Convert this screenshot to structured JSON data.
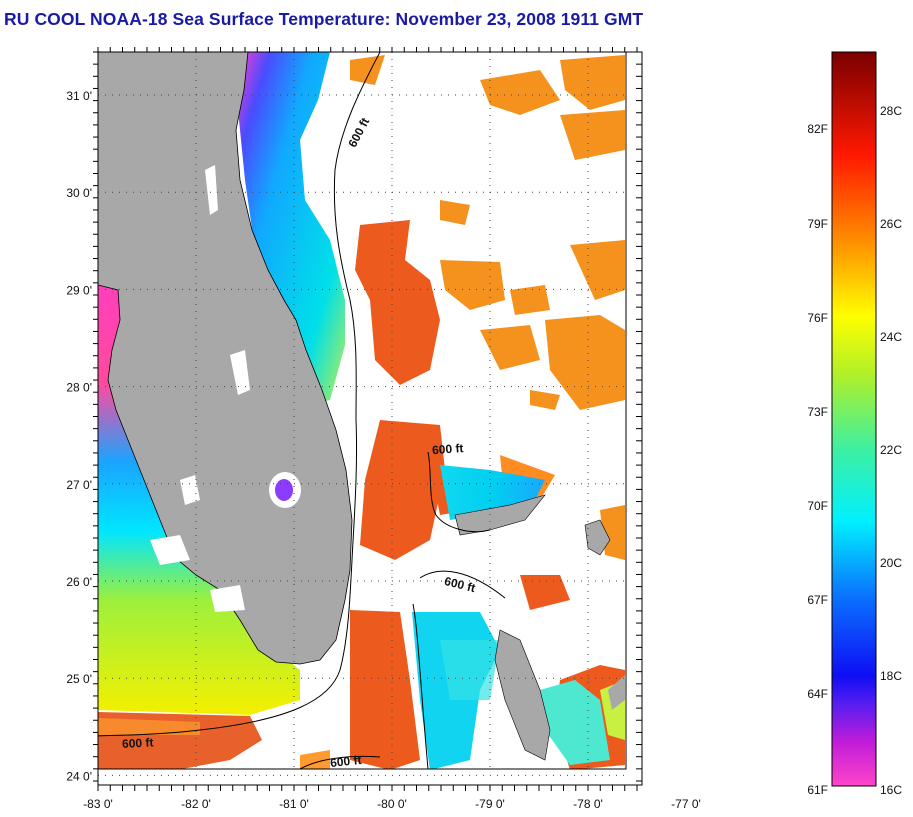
{
  "title": "RU COOL  NOAA-18  Sea Surface Temperature:  November 23, 2008 1911 GMT",
  "map": {
    "lon_labels": [
      "-83 0'",
      "-82 0'",
      "-81 0'",
      "-80 0'",
      "-79 0'",
      "-78 0'",
      "-77 0'"
    ],
    "lat_labels": [
      "31 0'",
      "30 0'",
      "29 0'",
      "28 0'",
      "27 0'",
      "26 0'",
      "25 0'",
      "24 0'"
    ],
    "contour_labels": [
      "600 ft",
      "600 ft",
      "600 ft",
      "600 ft",
      "600 ft"
    ],
    "colors": {
      "land": "#a8a8a8",
      "cloud": "#ffffff",
      "warm_water": "#e8561a",
      "grid": "#555555"
    }
  },
  "colorbar": {
    "fahrenheit_labels": [
      "82F",
      "79F",
      "76F",
      "73F",
      "70F",
      "67F",
      "64F",
      "61F"
    ],
    "celsius_labels": [
      "28C",
      "26C",
      "24C",
      "22C",
      "20C",
      "18C",
      "16C"
    ],
    "stops": [
      "#ff44c8",
      "#9a1ee0",
      "#1414ff",
      "#00b8ff",
      "#00f0e6",
      "#7cf23c",
      "#ffff00",
      "#ff8c00",
      "#ff1a00",
      "#7a0000"
    ]
  }
}
